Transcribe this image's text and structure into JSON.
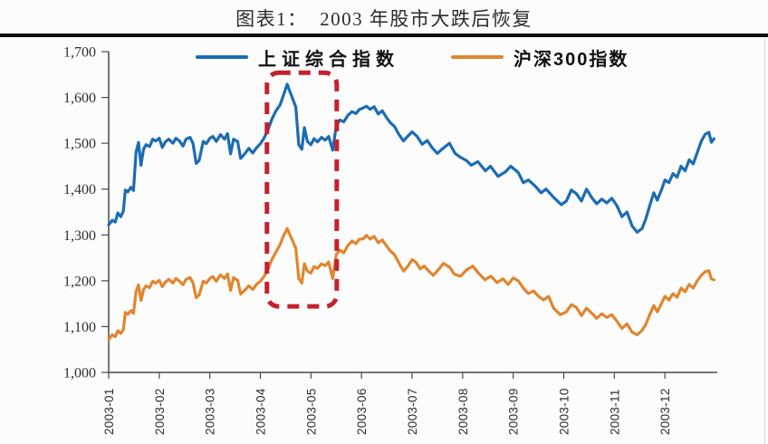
{
  "page": {
    "title": "图表1：  2003 年股市大跌后恢复"
  },
  "chart_data": {
    "type": "line",
    "title": "图表1：  2003 年股市大跌后恢复",
    "xlabel": "",
    "ylabel": "",
    "grid": false,
    "legend_position": "top",
    "ylim": [
      1000,
      1700
    ],
    "xlim_months": [
      0,
      12
    ],
    "y_ticks": [
      {
        "value": 1000,
        "label": "1,000"
      },
      {
        "value": 1100,
        "label": "1,100"
      },
      {
        "value": 1200,
        "label": "1,200"
      },
      {
        "value": 1300,
        "label": "1,300"
      },
      {
        "value": 1400,
        "label": "1,400"
      },
      {
        "value": 1500,
        "label": "1,500"
      },
      {
        "value": 1600,
        "label": "1,600"
      },
      {
        "value": 1700,
        "label": "1,700"
      }
    ],
    "x_tick_labels": [
      "2003-01",
      "2003-02",
      "2003-03",
      "2003-04",
      "2003-05",
      "2003-06",
      "2003-07",
      "2003-08",
      "2003-09",
      "2003-10",
      "2003-11",
      "2003-12"
    ],
    "annotation": {
      "type": "dashed-rounded-box",
      "color": "#c6202d",
      "x0_month": 3.13,
      "x1_month": 4.51,
      "y0_value": 1144,
      "y1_value": 1654
    },
    "series": [
      {
        "name": "上证综合指数",
        "color": "#1b6cb3",
        "points": [
          [
            0.0,
            1322
          ],
          [
            0.07,
            1332
          ],
          [
            0.13,
            1328
          ],
          [
            0.18,
            1348
          ],
          [
            0.24,
            1340
          ],
          [
            0.29,
            1352
          ],
          [
            0.33,
            1398
          ],
          [
            0.38,
            1394
          ],
          [
            0.44,
            1404
          ],
          [
            0.49,
            1397
          ],
          [
            0.54,
            1480
          ],
          [
            0.59,
            1502
          ],
          [
            0.64,
            1452
          ],
          [
            0.69,
            1487
          ],
          [
            0.74,
            1497
          ],
          [
            0.81,
            1493
          ],
          [
            0.87,
            1509
          ],
          [
            0.93,
            1505
          ],
          [
            1.0,
            1511
          ],
          [
            1.06,
            1491
          ],
          [
            1.12,
            1503
          ],
          [
            1.19,
            1509
          ],
          [
            1.27,
            1500
          ],
          [
            1.33,
            1511
          ],
          [
            1.4,
            1505
          ],
          [
            1.47,
            1494
          ],
          [
            1.53,
            1509
          ],
          [
            1.61,
            1513
          ],
          [
            1.67,
            1499
          ],
          [
            1.73,
            1456
          ],
          [
            1.79,
            1463
          ],
          [
            1.87,
            1504
          ],
          [
            1.93,
            1499
          ],
          [
            2.0,
            1511
          ],
          [
            2.06,
            1515
          ],
          [
            2.13,
            1504
          ],
          [
            2.21,
            1519
          ],
          [
            2.29,
            1509
          ],
          [
            2.35,
            1521
          ],
          [
            2.41,
            1477
          ],
          [
            2.47,
            1509
          ],
          [
            2.55,
            1504
          ],
          [
            2.61,
            1467
          ],
          [
            2.69,
            1477
          ],
          [
            2.77,
            1489
          ],
          [
            2.85,
            1479
          ],
          [
            2.93,
            1491
          ],
          [
            3.0,
            1499
          ],
          [
            3.07,
            1511
          ],
          [
            3.15,
            1529
          ],
          [
            3.23,
            1553
          ],
          [
            3.31,
            1571
          ],
          [
            3.39,
            1584
          ],
          [
            3.46,
            1606
          ],
          [
            3.53,
            1629
          ],
          [
            3.58,
            1614
          ],
          [
            3.64,
            1597
          ],
          [
            3.7,
            1579
          ],
          [
            3.76,
            1497
          ],
          [
            3.82,
            1487
          ],
          [
            3.87,
            1534
          ],
          [
            3.93,
            1504
          ],
          [
            4.0,
            1497
          ],
          [
            4.06,
            1510
          ],
          [
            4.13,
            1503
          ],
          [
            4.21,
            1513
          ],
          [
            4.28,
            1507
          ],
          [
            4.35,
            1515
          ],
          [
            4.43,
            1485
          ],
          [
            4.5,
            1538
          ],
          [
            4.57,
            1551
          ],
          [
            4.65,
            1547
          ],
          [
            4.73,
            1561
          ],
          [
            4.81,
            1569
          ],
          [
            4.89,
            1565
          ],
          [
            4.96,
            1574
          ],
          [
            5.03,
            1577
          ],
          [
            5.1,
            1581
          ],
          [
            5.17,
            1574
          ],
          [
            5.25,
            1580
          ],
          [
            5.33,
            1564
          ],
          [
            5.41,
            1571
          ],
          [
            5.49,
            1557
          ],
          [
            5.57,
            1545
          ],
          [
            5.65,
            1537
          ],
          [
            5.73,
            1521
          ],
          [
            5.83,
            1505
          ],
          [
            5.91,
            1515
          ],
          [
            6.0,
            1525
          ],
          [
            6.1,
            1515
          ],
          [
            6.2,
            1498
          ],
          [
            6.3,
            1506
          ],
          [
            6.4,
            1490
          ],
          [
            6.5,
            1478
          ],
          [
            6.6,
            1488
          ],
          [
            6.74,
            1500
          ],
          [
            6.85,
            1478
          ],
          [
            6.95,
            1470
          ],
          [
            7.08,
            1462
          ],
          [
            7.17,
            1452
          ],
          [
            7.3,
            1460
          ],
          [
            7.45,
            1440
          ],
          [
            7.55,
            1450
          ],
          [
            7.7,
            1428
          ],
          [
            7.85,
            1438
          ],
          [
            7.95,
            1450
          ],
          [
            8.1,
            1436
          ],
          [
            8.2,
            1414
          ],
          [
            8.3,
            1420
          ],
          [
            8.45,
            1405
          ],
          [
            8.55,
            1392
          ],
          [
            8.65,
            1400
          ],
          [
            8.8,
            1382
          ],
          [
            8.95,
            1366
          ],
          [
            9.05,
            1374
          ],
          [
            9.15,
            1398
          ],
          [
            9.25,
            1390
          ],
          [
            9.35,
            1374
          ],
          [
            9.45,
            1400
          ],
          [
            9.55,
            1382
          ],
          [
            9.65,
            1368
          ],
          [
            9.75,
            1378
          ],
          [
            9.85,
            1370
          ],
          [
            9.95,
            1380
          ],
          [
            10.05,
            1364
          ],
          [
            10.15,
            1340
          ],
          [
            10.25,
            1350
          ],
          [
            10.35,
            1320
          ],
          [
            10.45,
            1306
          ],
          [
            10.55,
            1314
          ],
          [
            10.62,
            1334
          ],
          [
            10.7,
            1364
          ],
          [
            10.78,
            1392
          ],
          [
            10.85,
            1376
          ],
          [
            10.93,
            1398
          ],
          [
            11.0,
            1420
          ],
          [
            11.08,
            1414
          ],
          [
            11.16,
            1434
          ],
          [
            11.24,
            1426
          ],
          [
            11.32,
            1450
          ],
          [
            11.4,
            1440
          ],
          [
            11.48,
            1464
          ],
          [
            11.56,
            1455
          ],
          [
            11.64,
            1480
          ],
          [
            11.72,
            1505
          ],
          [
            11.8,
            1520
          ],
          [
            11.87,
            1524
          ],
          [
            11.92,
            1502
          ],
          [
            11.97,
            1510
          ]
        ]
      },
      {
        "name": "沪深300指数",
        "color": "#e0862f",
        "points": [
          [
            0.0,
            1072
          ],
          [
            0.07,
            1082
          ],
          [
            0.13,
            1078
          ],
          [
            0.18,
            1091
          ],
          [
            0.24,
            1085
          ],
          [
            0.29,
            1093
          ],
          [
            0.33,
            1131
          ],
          [
            0.38,
            1127
          ],
          [
            0.44,
            1135
          ],
          [
            0.49,
            1129
          ],
          [
            0.54,
            1176
          ],
          [
            0.59,
            1191
          ],
          [
            0.64,
            1157
          ],
          [
            0.69,
            1181
          ],
          [
            0.74,
            1189
          ],
          [
            0.81,
            1185
          ],
          [
            0.87,
            1199
          ],
          [
            0.93,
            1195
          ],
          [
            1.0,
            1201
          ],
          [
            1.06,
            1187
          ],
          [
            1.12,
            1197
          ],
          [
            1.19,
            1203
          ],
          [
            1.27,
            1195
          ],
          [
            1.33,
            1205
          ],
          [
            1.4,
            1199
          ],
          [
            1.47,
            1191
          ],
          [
            1.53,
            1203
          ],
          [
            1.61,
            1207
          ],
          [
            1.67,
            1195
          ],
          [
            1.73,
            1163
          ],
          [
            1.79,
            1169
          ],
          [
            1.87,
            1199
          ],
          [
            1.93,
            1195
          ],
          [
            2.0,
            1205
          ],
          [
            2.06,
            1209
          ],
          [
            2.13,
            1199
          ],
          [
            2.21,
            1213
          ],
          [
            2.29,
            1205
          ],
          [
            2.35,
            1215
          ],
          [
            2.41,
            1179
          ],
          [
            2.47,
            1207
          ],
          [
            2.55,
            1201
          ],
          [
            2.61,
            1171
          ],
          [
            2.69,
            1179
          ],
          [
            2.77,
            1189
          ],
          [
            2.85,
            1181
          ],
          [
            2.93,
            1193
          ],
          [
            3.0,
            1199
          ],
          [
            3.07,
            1209
          ],
          [
            3.15,
            1225
          ],
          [
            3.23,
            1247
          ],
          [
            3.31,
            1263
          ],
          [
            3.39,
            1279
          ],
          [
            3.46,
            1299
          ],
          [
            3.53,
            1314
          ],
          [
            3.58,
            1301
          ],
          [
            3.64,
            1287
          ],
          [
            3.7,
            1271
          ],
          [
            3.76,
            1205
          ],
          [
            3.82,
            1195
          ],
          [
            3.87,
            1237
          ],
          [
            3.93,
            1221
          ],
          [
            4.0,
            1217
          ],
          [
            4.06,
            1231
          ],
          [
            4.13,
            1227
          ],
          [
            4.21,
            1237
          ],
          [
            4.28,
            1233
          ],
          [
            4.35,
            1241
          ],
          [
            4.43,
            1205
          ],
          [
            4.5,
            1257
          ],
          [
            4.57,
            1267
          ],
          [
            4.65,
            1261
          ],
          [
            4.73,
            1277
          ],
          [
            4.81,
            1287
          ],
          [
            4.89,
            1281
          ],
          [
            4.96,
            1291
          ],
          [
            5.03,
            1291
          ],
          [
            5.1,
            1299
          ],
          [
            5.17,
            1291
          ],
          [
            5.25,
            1297
          ],
          [
            5.33,
            1283
          ],
          [
            5.41,
            1289
          ],
          [
            5.49,
            1277
          ],
          [
            5.57,
            1265
          ],
          [
            5.65,
            1257
          ],
          [
            5.73,
            1241
          ],
          [
            5.83,
            1221
          ],
          [
            5.91,
            1231
          ],
          [
            6.0,
            1246
          ],
          [
            6.08,
            1240
          ],
          [
            6.16,
            1226
          ],
          [
            6.24,
            1232
          ],
          [
            6.32,
            1222
          ],
          [
            6.42,
            1212
          ],
          [
            6.52,
            1224
          ],
          [
            6.62,
            1238
          ],
          [
            6.74,
            1230
          ],
          [
            6.84,
            1214
          ],
          [
            6.96,
            1210
          ],
          [
            7.08,
            1224
          ],
          [
            7.2,
            1232
          ],
          [
            7.32,
            1216
          ],
          [
            7.44,
            1202
          ],
          [
            7.56,
            1210
          ],
          [
            7.68,
            1196
          ],
          [
            7.8,
            1204
          ],
          [
            7.9,
            1192
          ],
          [
            8.0,
            1206
          ],
          [
            8.1,
            1200
          ],
          [
            8.2,
            1184
          ],
          [
            8.3,
            1172
          ],
          [
            8.4,
            1178
          ],
          [
            8.5,
            1166
          ],
          [
            8.6,
            1158
          ],
          [
            8.7,
            1166
          ],
          [
            8.8,
            1140
          ],
          [
            8.93,
            1126
          ],
          [
            9.05,
            1132
          ],
          [
            9.15,
            1148
          ],
          [
            9.25,
            1142
          ],
          [
            9.35,
            1124
          ],
          [
            9.45,
            1140
          ],
          [
            9.55,
            1130
          ],
          [
            9.65,
            1118
          ],
          [
            9.75,
            1128
          ],
          [
            9.85,
            1120
          ],
          [
            9.95,
            1126
          ],
          [
            10.05,
            1112
          ],
          [
            10.15,
            1096
          ],
          [
            10.25,
            1106
          ],
          [
            10.35,
            1088
          ],
          [
            10.45,
            1082
          ],
          [
            10.55,
            1092
          ],
          [
            10.62,
            1104
          ],
          [
            10.7,
            1126
          ],
          [
            10.78,
            1146
          ],
          [
            10.85,
            1132
          ],
          [
            10.93,
            1150
          ],
          [
            11.0,
            1166
          ],
          [
            11.08,
            1158
          ],
          [
            11.16,
            1172
          ],
          [
            11.24,
            1164
          ],
          [
            11.32,
            1184
          ],
          [
            11.4,
            1176
          ],
          [
            11.48,
            1192
          ],
          [
            11.56,
            1184
          ],
          [
            11.64,
            1200
          ],
          [
            11.72,
            1212
          ],
          [
            11.8,
            1220
          ],
          [
            11.87,
            1222
          ],
          [
            11.92,
            1204
          ],
          [
            11.97,
            1202
          ]
        ]
      }
    ]
  }
}
